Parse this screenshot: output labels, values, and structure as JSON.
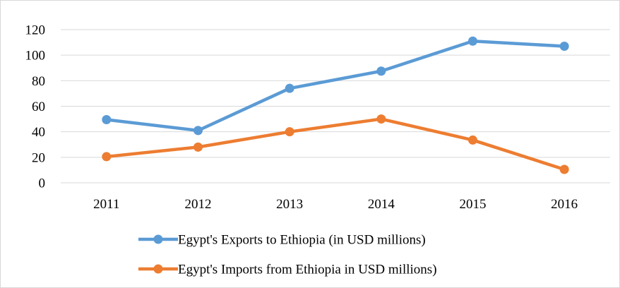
{
  "chart_data": {
    "type": "line",
    "title": "",
    "xlabel": "",
    "ylabel": "",
    "categories": [
      "2011",
      "2012",
      "2013",
      "2014",
      "2015",
      "2016"
    ],
    "y_ticks": [
      "0",
      "20",
      "40",
      "60",
      "80",
      "100",
      "120"
    ],
    "ylim": [
      0,
      120
    ],
    "grid": "horizontal",
    "legend_position": "bottom",
    "series": [
      {
        "name": "Egypt's Exports to Ethiopia (in USD millions)",
        "color": "#5B9BD5",
        "values": [
          49.5,
          41,
          74,
          87.5,
          111,
          107
        ]
      },
      {
        "name": "Egypt's Imports from Ethiopia in USD millions)",
        "color": "#ED7D31",
        "values": [
          20.5,
          28,
          40,
          50,
          33.5,
          10.5
        ]
      }
    ]
  }
}
